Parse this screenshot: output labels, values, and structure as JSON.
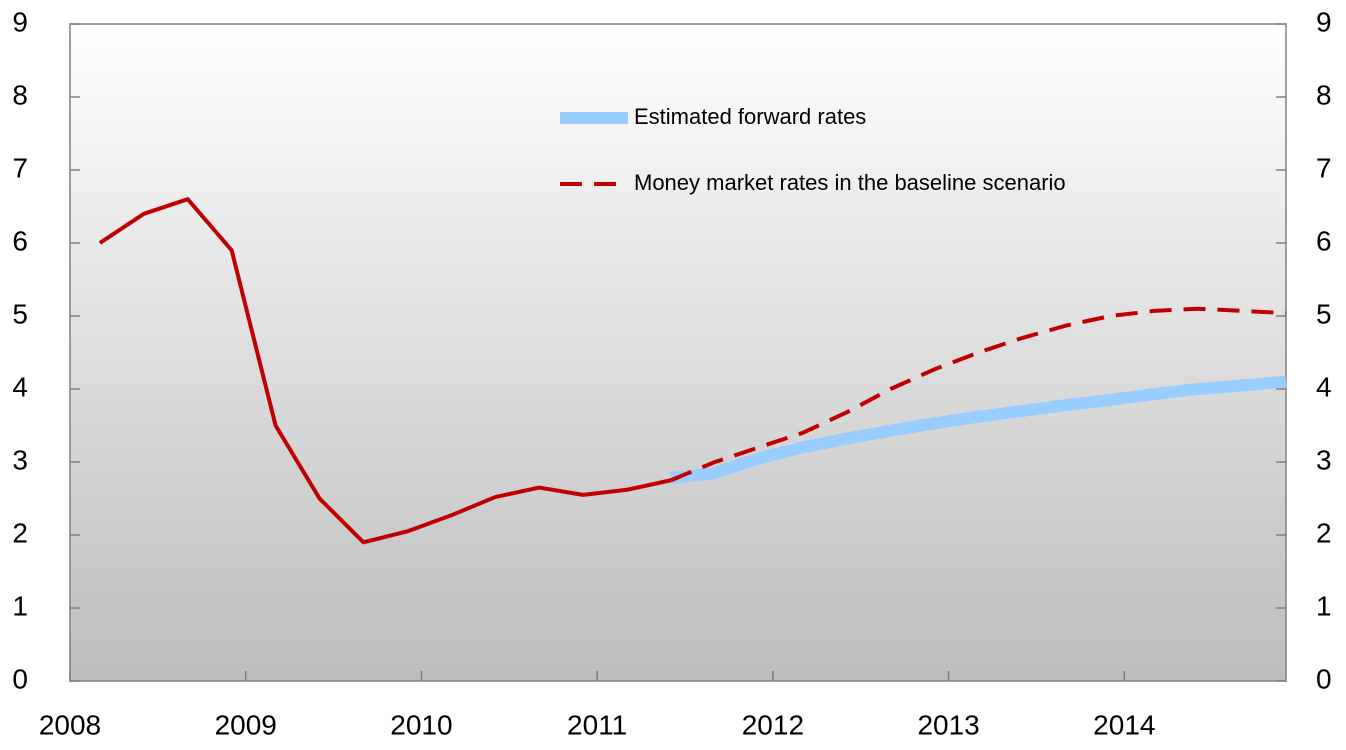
{
  "chart_data": {
    "type": "line",
    "x": [
      2008.17,
      2008.42,
      2008.67,
      2008.92,
      2009.17,
      2009.42,
      2009.67,
      2009.92,
      2010.17,
      2010.42,
      2010.67,
      2010.92,
      2011.17,
      2011.42,
      2011.67,
      2011.92,
      2012.17,
      2012.42,
      2012.67,
      2012.92,
      2013.17,
      2013.42,
      2013.67,
      2013.92,
      2014.17,
      2014.42,
      2014.67,
      2014.92
    ],
    "series": [
      {
        "name": "Estimated forward rates",
        "color": "#99ccff",
        "line_width": 12,
        "line_style": "solid",
        "values": [
          null,
          null,
          null,
          null,
          null,
          null,
          null,
          null,
          null,
          null,
          null,
          null,
          null,
          2.78,
          2.85,
          3.05,
          3.2,
          3.32,
          3.43,
          3.53,
          3.62,
          3.7,
          3.78,
          3.85,
          3.93,
          4.0,
          4.05,
          4.1
        ]
      },
      {
        "color": "#c00000",
        "line_width": 4,
        "line_style": "solid",
        "values": [
          6.0,
          6.4,
          6.6,
          5.9,
          3.5,
          2.5,
          1.9,
          2.05,
          2.27,
          2.52,
          2.65,
          2.55,
          2.62,
          2.75,
          null,
          null,
          null,
          null,
          null,
          null,
          null,
          null,
          null,
          null,
          null,
          null,
          null,
          null
        ]
      },
      {
        "name": "Money market rates in the baseline scenario",
        "color": "#c00000",
        "line_width": 4,
        "line_style": "dashed",
        "values": [
          null,
          null,
          null,
          null,
          null,
          null,
          null,
          null,
          null,
          null,
          null,
          null,
          null,
          2.75,
          3.0,
          3.2,
          3.4,
          3.68,
          4.0,
          4.27,
          4.5,
          4.7,
          4.87,
          5.0,
          5.07,
          5.1,
          5.07,
          5.04
        ]
      }
    ],
    "xlim": [
      2008,
      2014.92
    ],
    "xticks": [
      2008,
      2009,
      2010,
      2011,
      2012,
      2013,
      2014
    ],
    "ylim": [
      0,
      9
    ],
    "yticks": [
      0,
      1,
      2,
      3,
      4,
      5,
      6,
      7,
      8,
      9
    ],
    "y2lim": [
      0,
      9
    ],
    "y2ticks": [
      0,
      1,
      2,
      3,
      4,
      5,
      6,
      7,
      8,
      9
    ],
    "grid": false
  }
}
